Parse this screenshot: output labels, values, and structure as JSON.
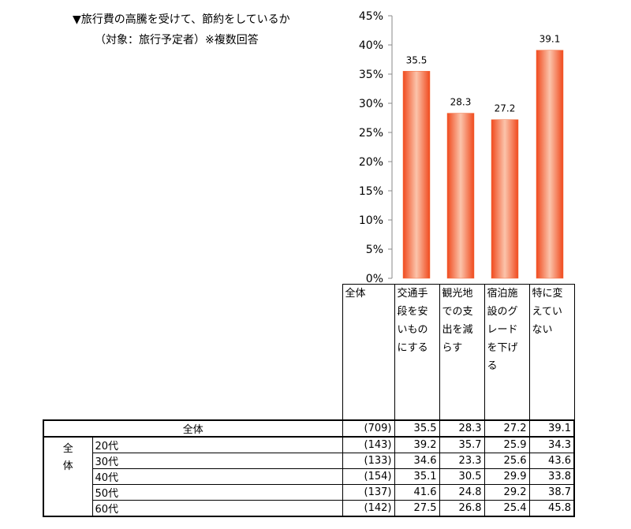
{
  "title_line1": "▼旅行費の高騰を受けて、節約をしているか",
  "title_line2": "（対象：旅行予定者）※複数回答",
  "chart_data": {
    "type": "bar",
    "categories": [
      "交通手段を安いものにする",
      "観光地での支出を減らす",
      "宿泊施設のグレードを下げる",
      "特に変えていない"
    ],
    "values": [
      35.5,
      28.3,
      27.2,
      39.1
    ],
    "ylim": [
      0,
      45
    ],
    "yticks": [
      "0%",
      "5%",
      "10%",
      "15%",
      "20%",
      "25%",
      "30%",
      "35%",
      "40%",
      "45%"
    ],
    "bar_color": "#f26b3a",
    "grid": false
  },
  "table": {
    "header_total": "全体",
    "header_cols": [
      "交通手\n段を安\nいもの\nにする",
      "観光地\nでの支\n出を減\nらす",
      "宿泊施\n設のグ\nレード\nを下げ\nる",
      "特に変\nえてい\nない"
    ],
    "total_row": {
      "label": "全体",
      "n": "(709)",
      "values": [
        "35.5",
        "28.3",
        "27.2",
        "39.1"
      ]
    },
    "group_label": "全\n体",
    "rows": [
      {
        "label": "20代",
        "n": "(143)",
        "values": [
          "39.2",
          "35.7",
          "25.9",
          "34.3"
        ]
      },
      {
        "label": "30代",
        "n": "(133)",
        "values": [
          "34.6",
          "23.3",
          "25.6",
          "43.6"
        ]
      },
      {
        "label": "40代",
        "n": "(154)",
        "values": [
          "35.1",
          "30.5",
          "29.9",
          "33.8"
        ]
      },
      {
        "label": "50代",
        "n": "(137)",
        "values": [
          "41.6",
          "24.8",
          "29.2",
          "38.7"
        ]
      },
      {
        "label": "60代",
        "n": "(142)",
        "values": [
          "27.5",
          "26.8",
          "25.4",
          "45.8"
        ]
      }
    ]
  }
}
